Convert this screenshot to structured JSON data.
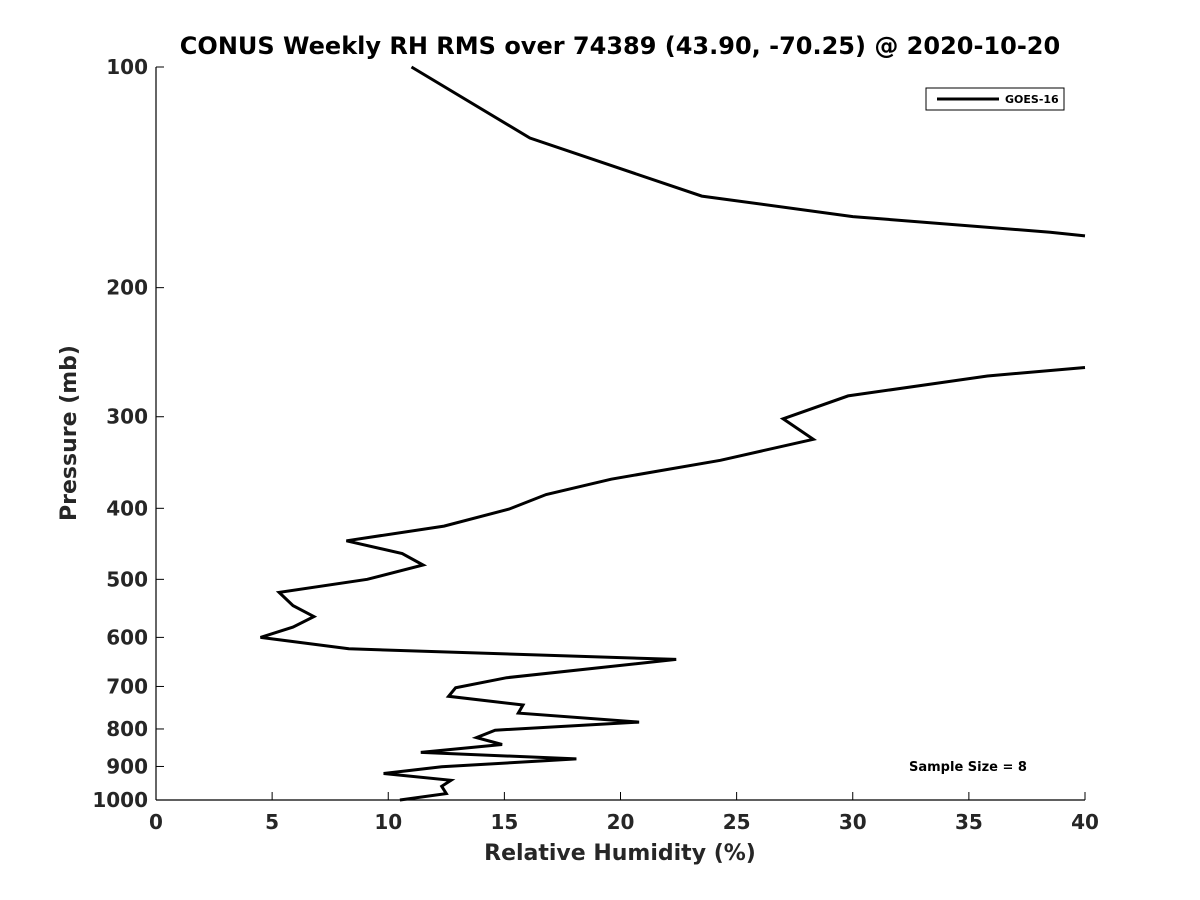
{
  "chart_data": {
    "type": "line",
    "title": "CONUS Weekly RH RMS over 74389 (43.90, -70.25) @ 2020-10-20",
    "xlabel": "Relative Humidity (%)",
    "ylabel": "Pressure (mb)",
    "xlim": [
      0,
      40
    ],
    "ylim": [
      100,
      1000
    ],
    "y_scale": "log",
    "y_reversed": true,
    "x_ticks": [
      "0",
      "5",
      "10",
      "15",
      "20",
      "25",
      "30",
      "35",
      "40"
    ],
    "y_ticks": [
      "100",
      "200",
      "300",
      "400",
      "500",
      "600",
      "700",
      "800",
      "900",
      "1000"
    ],
    "grid": false,
    "legend_position": "top-right",
    "annotation": "Sample Size = 8",
    "series": [
      {
        "name": "GOES-16",
        "color": "#000000",
        "segments": [
          [
            [
              11.0,
              100
            ],
            [
              16.1,
              125
            ],
            [
              23.5,
              150
            ],
            [
              30.0,
              160
            ],
            [
              38.5,
              168
            ],
            [
              40.0,
              170
            ]
          ],
          [
            [
              40.0,
              257
            ],
            [
              35.8,
              264
            ],
            [
              29.8,
              281
            ],
            [
              27.0,
              302
            ],
            [
              28.3,
              322
            ],
            [
              24.3,
              344
            ],
            [
              19.6,
              365
            ],
            [
              16.8,
              383
            ],
            [
              15.2,
              401
            ],
            [
              12.4,
              423
            ],
            [
              8.2,
              443
            ],
            [
              10.6,
              461
            ],
            [
              11.5,
              478
            ],
            [
              9.1,
              500
            ],
            [
              5.3,
              521
            ],
            [
              5.9,
              543
            ],
            [
              6.8,
              562
            ],
            [
              5.9,
              581
            ],
            [
              4.5,
              600
            ],
            [
              8.3,
              622
            ],
            [
              22.4,
              643
            ],
            [
              15.1,
              681
            ],
            [
              12.9,
              703
            ],
            [
              12.6,
              722
            ],
            [
              15.8,
              742
            ],
            [
              15.6,
              761
            ],
            [
              20.8,
              783
            ],
            [
              14.6,
              803
            ],
            [
              13.8,
              822
            ],
            [
              14.9,
              840
            ],
            [
              11.4,
              861
            ],
            [
              18.1,
              879
            ],
            [
              12.3,
              901
            ],
            [
              9.8,
              920
            ],
            [
              12.7,
              940
            ],
            [
              12.3,
              958
            ],
            [
              12.5,
              980
            ],
            [
              10.5,
              1000
            ]
          ]
        ]
      }
    ]
  }
}
